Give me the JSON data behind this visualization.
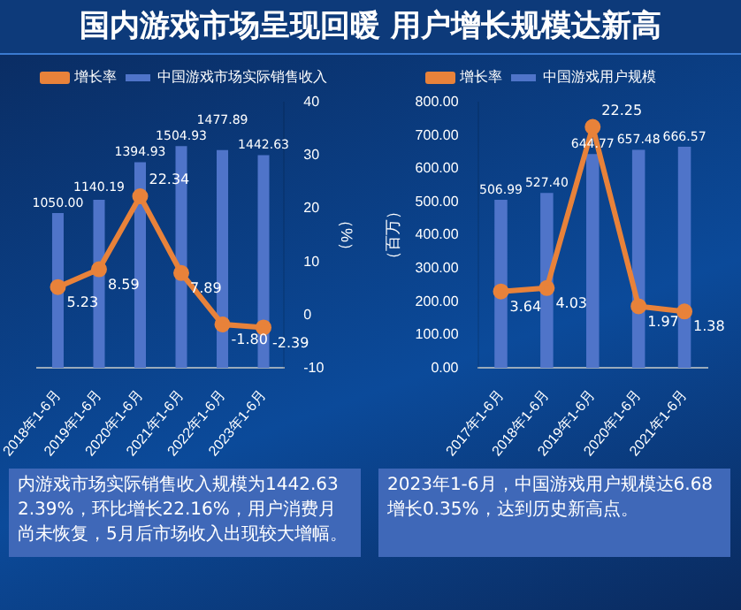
{
  "chart_data": [
    {
      "type": "bar",
      "title": "国内游戏市场呈现回暖 用户增长规模达新高",
      "categories": [
        "2018年1-6月",
        "2019年1-6月",
        "2020年1-6月",
        "2021年1-6月",
        "2022年1-6月",
        "2023年1-6月"
      ],
      "series": [
        {
          "name": "中国游戏市场实际销售收入",
          "color": "#4f74c9",
          "values": [
            1050.0,
            1140.19,
            1394.93,
            1504.93,
            1477.89,
            1442.63
          ],
          "value_labels": [
            "1050.00",
            "1140.19",
            "1394.93",
            "1504.93",
            "1477.89",
            "1442.63"
          ]
        },
        {
          "name": "增长率",
          "type": "line",
          "axis": "y2",
          "color": "#e8823a",
          "values": [
            5.23,
            8.59,
            22.34,
            7.89,
            -1.8,
            -2.39
          ],
          "value_labels": [
            "5.23",
            "8.59",
            "22.34",
            "7.89",
            "-1.80",
            "-2.39"
          ]
        }
      ],
      "y2label": "（%）",
      "y2lim": [
        -10,
        40
      ],
      "y2ticks": [
        -10,
        0,
        10,
        20,
        30,
        40
      ],
      "legend": "top",
      "marker": "circle",
      "grid": false,
      "annotations": [
        "内游戏市场实际销售收入规模为1442.632.39%，环比增长22.16%，用户消费月尚未恢复，5月后市场收入出现较大增幅。"
      ]
    },
    {
      "type": "bar",
      "categories": [
        "2017年1-6月",
        "2018年1-6月",
        "2019年1-6月",
        "2020年1-6月",
        "2021年1-6月"
      ],
      "series": [
        {
          "name": "中国游戏用户规模",
          "color": "#4f74c9",
          "values": [
            506.99,
            527.4,
            644.77,
            657.48,
            666.57
          ],
          "value_labels": [
            "506.99",
            "527.40",
            "644.77",
            "657.48",
            "666.57"
          ]
        },
        {
          "name": "增长率",
          "type": "line",
          "axis": "y2",
          "color": "#e8823a",
          "values": [
            3.64,
            4.03,
            22.25,
            1.97,
            1.38
          ],
          "value_labels": [
            "3.64",
            "4.03",
            "22.25",
            "1.97",
            "1.38"
          ]
        }
      ],
      "ylabel": "（百万）",
      "ylim": [
        0,
        800
      ],
      "yticks": [
        {
          "value": 0,
          "label": "0.00"
        },
        {
          "value": 100,
          "label": "100.00"
        },
        {
          "value": 200,
          "label": "200.00"
        },
        {
          "value": 300,
          "label": "300.00"
        },
        {
          "value": 400,
          "label": "400.00"
        },
        {
          "value": 500,
          "label": "500.00"
        },
        {
          "value": 600,
          "label": "600.00"
        },
        {
          "value": 700,
          "label": "700.00"
        },
        {
          "value": 800,
          "label": "800.00"
        }
      ],
      "legend": "top",
      "marker": "circle",
      "grid": false,
      "annotations": [
        "2023年1-6月，中国游戏用户规模达6.68增长0.35%，达到历史新高点。"
      ]
    }
  ]
}
